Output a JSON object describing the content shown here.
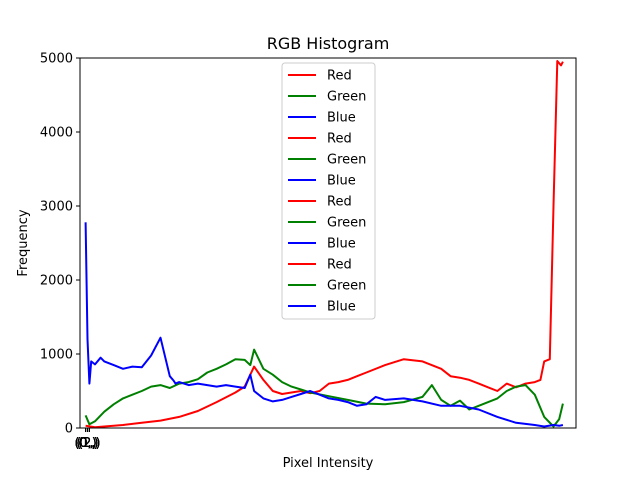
{
  "chart_data": {
    "type": "line",
    "title": "RGB Histogram",
    "xlabel": "Pixel Intensity",
    "ylabel": "Frequency",
    "xlim": [
      -3,
      262
    ],
    "ylim": [
      0,
      5000
    ],
    "yticks": [
      0,
      1000,
      2000,
      3000,
      4000,
      5000
    ],
    "xtick_labels": [
      "(0,)",
      "(1,)",
      "(2,)",
      "(0,)",
      "(1,)",
      "(2,)",
      "(0,)",
      "(1,)",
      "(2,)",
      "(0,)",
      "(1,)",
      "(2,)"
    ],
    "legend": [
      "Red",
      "Green",
      "Blue",
      "Red",
      "Green",
      "Blue",
      "Red",
      "Green",
      "Blue",
      "Red",
      "Green",
      "Blue"
    ],
    "legend_loc": "upper center",
    "colors": {
      "Red": "#ff0000",
      "Green": "#008000",
      "Blue": "#0000ff"
    },
    "series": [
      {
        "name": "Red",
        "x": [
          0,
          5,
          10,
          20,
          30,
          40,
          50,
          60,
          70,
          80,
          85,
          90,
          95,
          100,
          105,
          110,
          115,
          120,
          125,
          130,
          135,
          140,
          145,
          150,
          160,
          170,
          180,
          190,
          195,
          200,
          205,
          210,
          215,
          220,
          225,
          230,
          235,
          240,
          243,
          245,
          248,
          250,
          252,
          254,
          255
        ],
        "values": [
          30,
          10,
          20,
          40,
          70,
          100,
          150,
          230,
          350,
          480,
          560,
          830,
          650,
          500,
          460,
          480,
          500,
          470,
          500,
          600,
          620,
          650,
          700,
          750,
          850,
          930,
          900,
          800,
          700,
          680,
          650,
          600,
          550,
          500,
          600,
          550,
          600,
          620,
          650,
          900,
          930,
          3000,
          4960,
          4900,
          4950
        ]
      },
      {
        "name": "Green",
        "x": [
          0,
          2,
          5,
          10,
          15,
          20,
          25,
          30,
          35,
          40,
          45,
          50,
          55,
          60,
          65,
          70,
          75,
          80,
          85,
          88,
          90,
          95,
          100,
          105,
          110,
          115,
          120,
          130,
          140,
          150,
          160,
          170,
          180,
          185,
          190,
          195,
          200,
          205,
          210,
          220,
          225,
          230,
          235,
          240,
          245,
          250,
          253,
          255
        ],
        "values": [
          170,
          50,
          90,
          220,
          320,
          400,
          450,
          500,
          560,
          580,
          540,
          600,
          620,
          660,
          750,
          800,
          860,
          930,
          920,
          850,
          1060,
          800,
          720,
          620,
          560,
          520,
          480,
          430,
          380,
          330,
          320,
          350,
          420,
          580,
          380,
          300,
          370,
          250,
          300,
          400,
          500,
          560,
          580,
          450,
          150,
          20,
          120,
          330
        ]
      },
      {
        "name": "Blue",
        "x": [
          0,
          1,
          2,
          3,
          5,
          8,
          10,
          15,
          20,
          25,
          30,
          35,
          40,
          45,
          47,
          48,
          50,
          55,
          60,
          65,
          70,
          75,
          80,
          85,
          88,
          90,
          95,
          100,
          105,
          110,
          115,
          120,
          125,
          130,
          135,
          140,
          145,
          150,
          155,
          160,
          170,
          180,
          190,
          200,
          210,
          220,
          230,
          240,
          245,
          250,
          253,
          255
        ],
        "values": [
          2780,
          1200,
          600,
          900,
          860,
          950,
          900,
          850,
          800,
          830,
          820,
          980,
          1220,
          700,
          640,
          600,
          620,
          580,
          600,
          580,
          560,
          580,
          560,
          540,
          720,
          500,
          400,
          360,
          380,
          420,
          460,
          500,
          450,
          400,
          380,
          350,
          300,
          320,
          420,
          380,
          400,
          360,
          300,
          300,
          250,
          150,
          70,
          40,
          20,
          40,
          30,
          40
        ]
      }
    ]
  }
}
